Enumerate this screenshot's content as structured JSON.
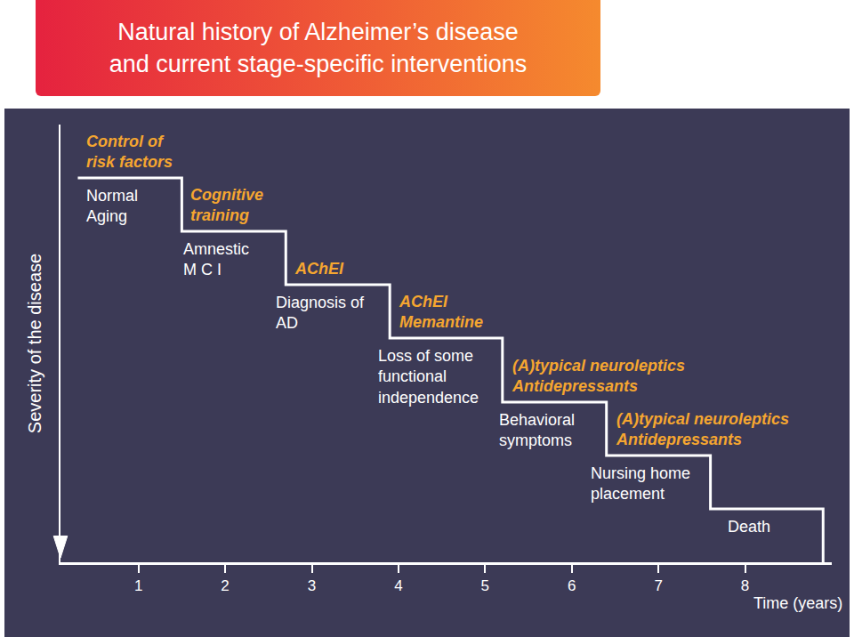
{
  "chart_data": {
    "type": "step",
    "title": "Natural history of Alzheimer’s disease\nand current stage-specific interventions",
    "x_label": "Time (years)",
    "y_label": "Severity of the disease",
    "x": [
      0.3,
      1.5,
      2.7,
      3.9,
      5.2,
      6.4,
      7.6,
      8.9
    ],
    "values": [
      1,
      2,
      3,
      4,
      5.2,
      6.2,
      7.2,
      8.2
    ],
    "xlim": [
      0.1,
      9
    ],
    "xticks": [
      1,
      2,
      3,
      4,
      5,
      6,
      7,
      8
    ],
    "ylim": [
      8.2,
      0
    ],
    "tick_labels": "x",
    "grid": false,
    "color": "#ffffff",
    "stages": [
      {
        "label": "Normal\nAging",
        "intervention": "Control of\nrisk factors"
      },
      {
        "label": "Amnestic\nM C I",
        "intervention": "Cognitive\ntraining"
      },
      {
        "label": "Diagnosis of\nAD",
        "intervention": "AChEI"
      },
      {
        "label": "Loss of some\nfunctional\nindependence",
        "intervention": "AChEI\nMemantine"
      },
      {
        "label": "Behavioral\nsymptoms",
        "intervention": "(A)typical neuroleptics\nAntidepressants"
      },
      {
        "label": "Nursing home\nplacement",
        "intervention": "(A)typical neuroleptics\nAntidepressants"
      },
      {
        "label": "Death"
      }
    ]
  }
}
